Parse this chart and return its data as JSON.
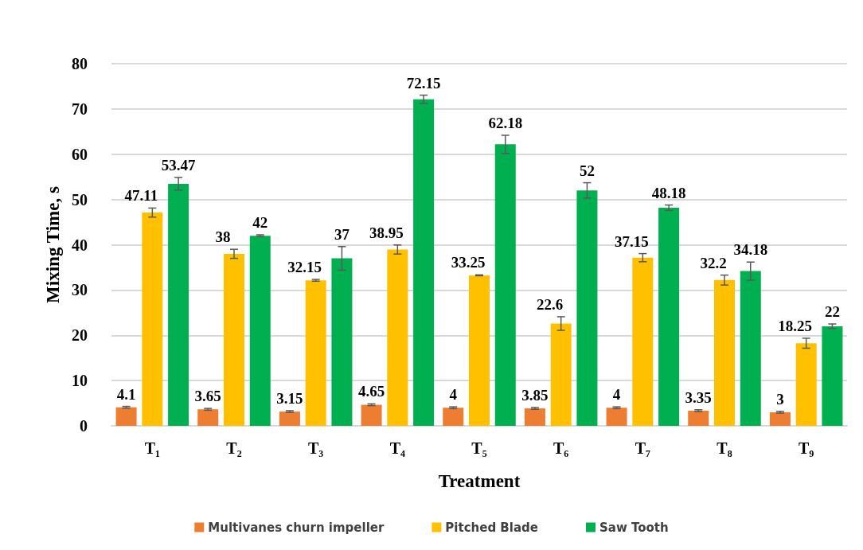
{
  "chart_data": {
    "type": "bar",
    "xlabel": "Treatment",
    "ylabel": "Mixing Time, s",
    "categories": [
      "T₁",
      "T₂",
      "T₃",
      "T₄",
      "T₅",
      "T₆",
      "T₇",
      "T₈",
      "T₉"
    ],
    "series": [
      {
        "name": "Multivanes churn impeller",
        "color": "#ed7d31",
        "values": [
          4.1,
          3.65,
          3.15,
          4.65,
          4,
          3.85,
          4,
          3.35,
          3
        ],
        "errors": [
          0.2,
          0.2,
          0.2,
          0.2,
          0.2,
          0.2,
          0.2,
          0.2,
          0.2
        ]
      },
      {
        "name": "Pitched Blade",
        "color": "#ffc000",
        "values": [
          47.11,
          38,
          32.15,
          38.95,
          33.25,
          22.6,
          37.15,
          32.2,
          18.25
        ],
        "errors": [
          1,
          1,
          0.2,
          1,
          0.1,
          1.5,
          0.9,
          1.1,
          1.1
        ]
      },
      {
        "name": "Saw Tooth",
        "color": "#00b050",
        "values": [
          53.47,
          42,
          37,
          72.15,
          62.18,
          52,
          48.18,
          34.18,
          22
        ],
        "errors": [
          1.4,
          0.2,
          2.6,
          0.9,
          2,
          1.7,
          0.6,
          2,
          0.5
        ]
      }
    ],
    "ylim": [
      0,
      80
    ],
    "yticks": [
      0,
      10,
      20,
      30,
      40,
      50,
      60,
      70,
      80
    ],
    "grid": "y",
    "legend": "bottom",
    "data_labels": true
  }
}
